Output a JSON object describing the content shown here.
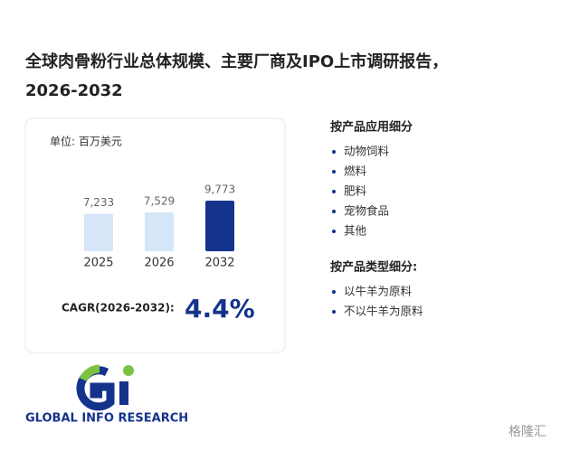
{
  "chart_data": {
    "type": "bar",
    "title_lines": [
      "全球肉骨粉行业总体规模、主要厂商及IPO上市调研报告，",
      "2026-2032"
    ],
    "unit": "单位: 百万美元",
    "categories": [
      "2025",
      "2026",
      "2032"
    ],
    "values": [
      7233,
      7529,
      9773
    ],
    "value_labels": [
      "7,233",
      "7,529",
      "9,773"
    ],
    "colors": [
      "#d5e6f8",
      "#d5e6f8",
      "#14338c"
    ],
    "cagr_label": "CAGR(2026-2032):",
    "cagr_value": "4.4%"
  },
  "segments": [
    {
      "title": "按产品应用细分",
      "items": [
        "动物饲料",
        "燃料",
        "肥料",
        "宠物食品",
        "其他"
      ]
    },
    {
      "title": "按产品类型细分:",
      "items": [
        "以牛羊为原料",
        "不以牛羊为原料"
      ]
    }
  ],
  "logo_text": "GLOBAL INFO RESEARCH",
  "watermark": "格隆汇"
}
